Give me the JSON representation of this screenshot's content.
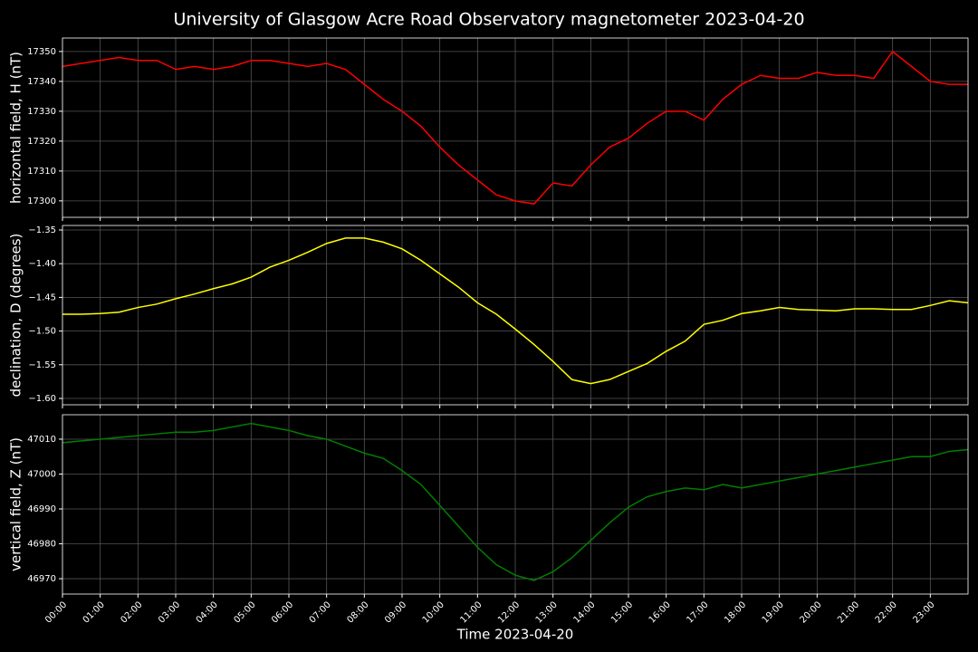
{
  "title": "University of Glasgow Acre Road Observatory magnetometer 2023-04-20",
  "chart_data": [
    {
      "type": "line",
      "ylabel": "horizontal field, H (nT)",
      "color": "#ff0000",
      "grid": true,
      "x": [
        0,
        0.5,
        1,
        1.5,
        2,
        2.5,
        3,
        3.5,
        4,
        4.5,
        5,
        5.5,
        6,
        6.5,
        7,
        7.5,
        8,
        8.5,
        9,
        9.5,
        10,
        10.5,
        11,
        11.5,
        12,
        12.5,
        13,
        13.5,
        14,
        14.5,
        15,
        15.5,
        16,
        16.5,
        17,
        17.5,
        18,
        18.5,
        19,
        19.5,
        20,
        20.5,
        21,
        21.5,
        22,
        22.5,
        23,
        23.5,
        24
      ],
      "values": [
        17345,
        17346,
        17347,
        17348,
        17347,
        17347,
        17344,
        17345,
        17344,
        17345,
        17347,
        17347,
        17346,
        17345,
        17346,
        17344,
        17339,
        17334,
        17330,
        17325,
        17318,
        17312,
        17307,
        17302,
        17300,
        17299,
        17306,
        17305,
        17312,
        17318,
        17321,
        17326,
        17330,
        17330,
        17327,
        17334,
        17339,
        17342,
        17341,
        17341,
        17343,
        17342,
        17342,
        17341,
        17350,
        17345,
        17340,
        17339,
        17339
      ],
      "xlim": [
        0,
        24
      ],
      "ylim": [
        17294.5,
        17354.5
      ],
      "yticks": [
        17300,
        17310,
        17320,
        17330,
        17340,
        17350
      ]
    },
    {
      "type": "line",
      "ylabel": "declination, D (degrees)",
      "color": "#ffff00",
      "grid": true,
      "x": [
        0,
        0.5,
        1,
        1.5,
        2,
        2.5,
        3,
        3.5,
        4,
        4.5,
        5,
        5.5,
        6,
        6.5,
        7,
        7.5,
        8,
        8.5,
        9,
        9.5,
        10,
        10.5,
        11,
        11.5,
        12,
        12.5,
        13,
        13.5,
        14,
        14.5,
        15,
        15.5,
        16,
        16.5,
        17,
        17.5,
        18,
        18.5,
        19,
        19.5,
        20,
        20.5,
        21,
        21.5,
        22,
        22.5,
        23,
        23.5,
        24
      ],
      "values": [
        -1.475,
        -1.475,
        -1.474,
        -1.472,
        -1.465,
        -1.46,
        -1.452,
        -1.445,
        -1.437,
        -1.43,
        -1.42,
        -1.405,
        -1.395,
        -1.383,
        -1.37,
        -1.362,
        -1.362,
        -1.368,
        -1.378,
        -1.395,
        -1.415,
        -1.435,
        -1.458,
        -1.475,
        -1.497,
        -1.52,
        -1.545,
        -1.572,
        -1.578,
        -1.572,
        -1.56,
        -1.548,
        -1.53,
        -1.515,
        -1.49,
        -1.484,
        -1.474,
        -1.47,
        -1.465,
        -1.468,
        -1.469,
        -1.47,
        -1.467,
        -1.467,
        -1.468,
        -1.468,
        -1.462,
        -1.455,
        -1.458
      ],
      "xlim": [
        0,
        24
      ],
      "ylim": [
        -1.6094,
        -1.3433
      ],
      "yticks": [
        {
          "value": -1.6,
          "label": "−1.60"
        },
        {
          "value": -1.55,
          "label": "−1.55"
        },
        {
          "value": -1.5,
          "label": "−1.50"
        },
        {
          "value": -1.45,
          "label": "−1.45"
        },
        {
          "value": -1.4,
          "label": "−1.40"
        },
        {
          "value": -1.35,
          "label": "−1.35"
        }
      ]
    },
    {
      "type": "line",
      "ylabel": "vertical field, Z (nT)",
      "xlabel": "Time 2023-04-20",
      "color": "#007f00",
      "grid": true,
      "x": [
        0,
        0.5,
        1,
        1.5,
        2,
        2.5,
        3,
        3.5,
        4,
        4.5,
        5,
        5.5,
        6,
        6.5,
        7,
        7.5,
        8,
        8.5,
        9,
        9.5,
        10,
        10.5,
        11,
        11.5,
        12,
        12.5,
        13,
        13.5,
        14,
        14.5,
        15,
        15.5,
        16,
        16.5,
        17,
        17.5,
        18,
        18.5,
        19,
        19.5,
        20,
        20.5,
        21,
        21.5,
        22,
        22.5,
        23,
        23.5,
        24
      ],
      "values": [
        47009,
        47009.5,
        47010,
        47010.5,
        47011,
        47011.5,
        47012,
        47012,
        47012.5,
        47013.5,
        47014.5,
        47013.5,
        47012.5,
        47011,
        47010,
        47008,
        47006,
        47004.5,
        47001,
        46997,
        46991,
        46985,
        46979,
        46974,
        46971,
        46969.5,
        46972,
        46976,
        46981,
        46986,
        46990.5,
        46993.5,
        46995,
        46996,
        46995.5,
        46997,
        46996,
        46997,
        46998,
        46999,
        47000,
        47001,
        47002,
        47003,
        47004,
        47005,
        47005,
        47006.5,
        47007
      ],
      "xlim": [
        0,
        24
      ],
      "ylim": [
        46965.6,
        47017.0
      ],
      "yticks": [
        46970,
        46980,
        46990,
        47000,
        47010
      ],
      "xticks": [
        {
          "value": 0,
          "label": "00:00"
        },
        {
          "value": 1,
          "label": "01:00"
        },
        {
          "value": 2,
          "label": "02:00"
        },
        {
          "value": 3,
          "label": "03:00"
        },
        {
          "value": 4,
          "label": "04:00"
        },
        {
          "value": 5,
          "label": "05:00"
        },
        {
          "value": 6,
          "label": "06:00"
        },
        {
          "value": 7,
          "label": "07:00"
        },
        {
          "value": 8,
          "label": "08:00"
        },
        {
          "value": 9,
          "label": "09:00"
        },
        {
          "value": 10,
          "label": "10:00"
        },
        {
          "value": 11,
          "label": "11:00"
        },
        {
          "value": 12,
          "label": "12:00"
        },
        {
          "value": 13,
          "label": "13:00"
        },
        {
          "value": 14,
          "label": "14:00"
        },
        {
          "value": 15,
          "label": "15:00"
        },
        {
          "value": 16,
          "label": "16:00"
        },
        {
          "value": 17,
          "label": "17:00"
        },
        {
          "value": 18,
          "label": "18:00"
        },
        {
          "value": 19,
          "label": "19:00"
        },
        {
          "value": 20,
          "label": "20:00"
        },
        {
          "value": 21,
          "label": "21:00"
        },
        {
          "value": 22,
          "label": "22:00"
        },
        {
          "value": 23,
          "label": "23:00"
        }
      ]
    }
  ]
}
